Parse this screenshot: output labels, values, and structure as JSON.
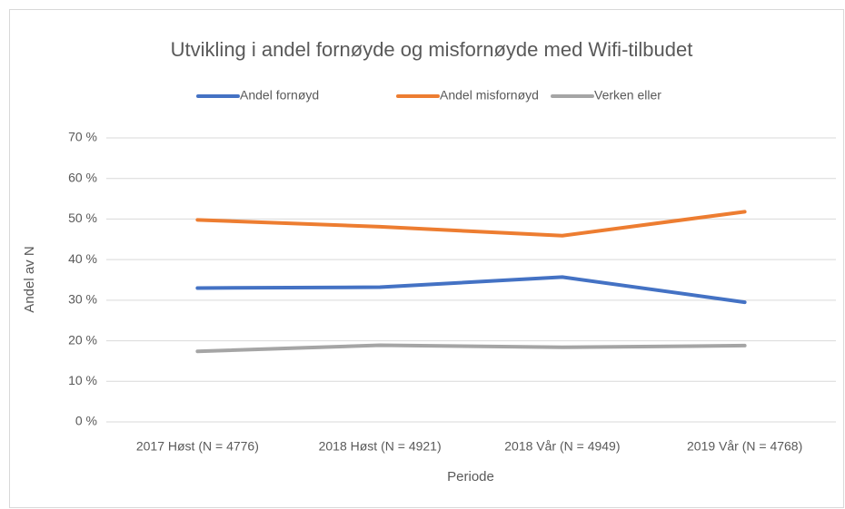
{
  "chart_data": {
    "type": "line",
    "title": "Utvikling i andel fornøyde og misfornøyde med Wifi-tilbudet",
    "x_label": "Periode",
    "y_label": "Andel av N",
    "categories": [
      "2017 Høst (N = 4776)",
      "2018 Høst (N = 4921)",
      "2018 Vår (N = 4949)",
      "2019 Vår (N = 4768)"
    ],
    "series": [
      {
        "name": "Andel fornøyd",
        "color": "#4472c4",
        "values": [
          33,
          33.2,
          35.7,
          29.5
        ]
      },
      {
        "name": "Andel misfornøyd",
        "color": "#ed7d31",
        "values": [
          49.8,
          48.1,
          45.9,
          51.8
        ]
      },
      {
        "name": "Verken eller",
        "color": "#a5a5a5",
        "values": [
          17.4,
          18.9,
          18.4,
          18.8
        ]
      }
    ],
    "ylim": [
      0,
      70
    ],
    "yticks": [
      {
        "value": 0,
        "label": "0 %"
      },
      {
        "value": 10,
        "label": "10 %"
      },
      {
        "value": 20,
        "label": "20 %"
      },
      {
        "value": 30,
        "label": "30 %"
      },
      {
        "value": 40,
        "label": "40 %"
      },
      {
        "value": 50,
        "label": "50 %"
      },
      {
        "value": 60,
        "label": "60 %"
      },
      {
        "value": 70,
        "label": "70 %"
      }
    ],
    "grid": true,
    "legend": "top"
  }
}
